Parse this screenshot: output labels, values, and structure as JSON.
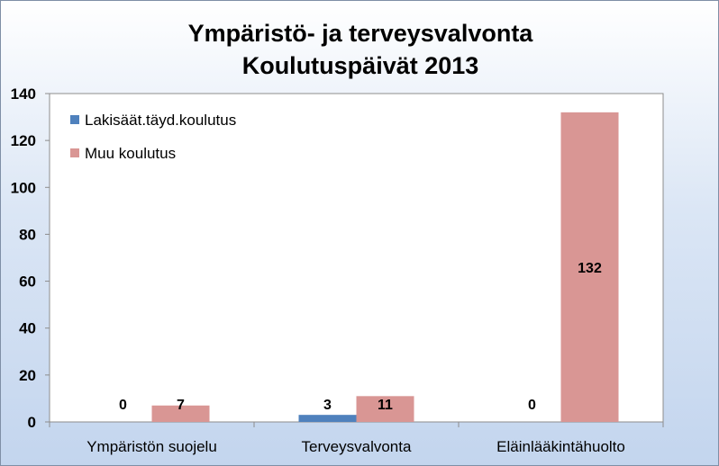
{
  "chart_data": {
    "type": "bar",
    "title_line1": "Ympäristö- ja terveysvalvonta",
    "title_line2": "Koulutuspäivät 2013",
    "categories": [
      "Ympäristön suojelu",
      "Terveysvalvonta",
      "Eläinlääkintähuolto"
    ],
    "series": [
      {
        "name": "Lakisäät.täyd.koulutus",
        "values": [
          0,
          3,
          0
        ],
        "color": "#4f81bd"
      },
      {
        "name": "Muu koulutus",
        "values": [
          7,
          11,
          132
        ],
        "color": "#d99694"
      }
    ],
    "ylim": [
      0,
      140
    ],
    "yticks": [
      0,
      20,
      40,
      60,
      80,
      100,
      120,
      140
    ],
    "grid": false,
    "legend_position": "top-left"
  }
}
